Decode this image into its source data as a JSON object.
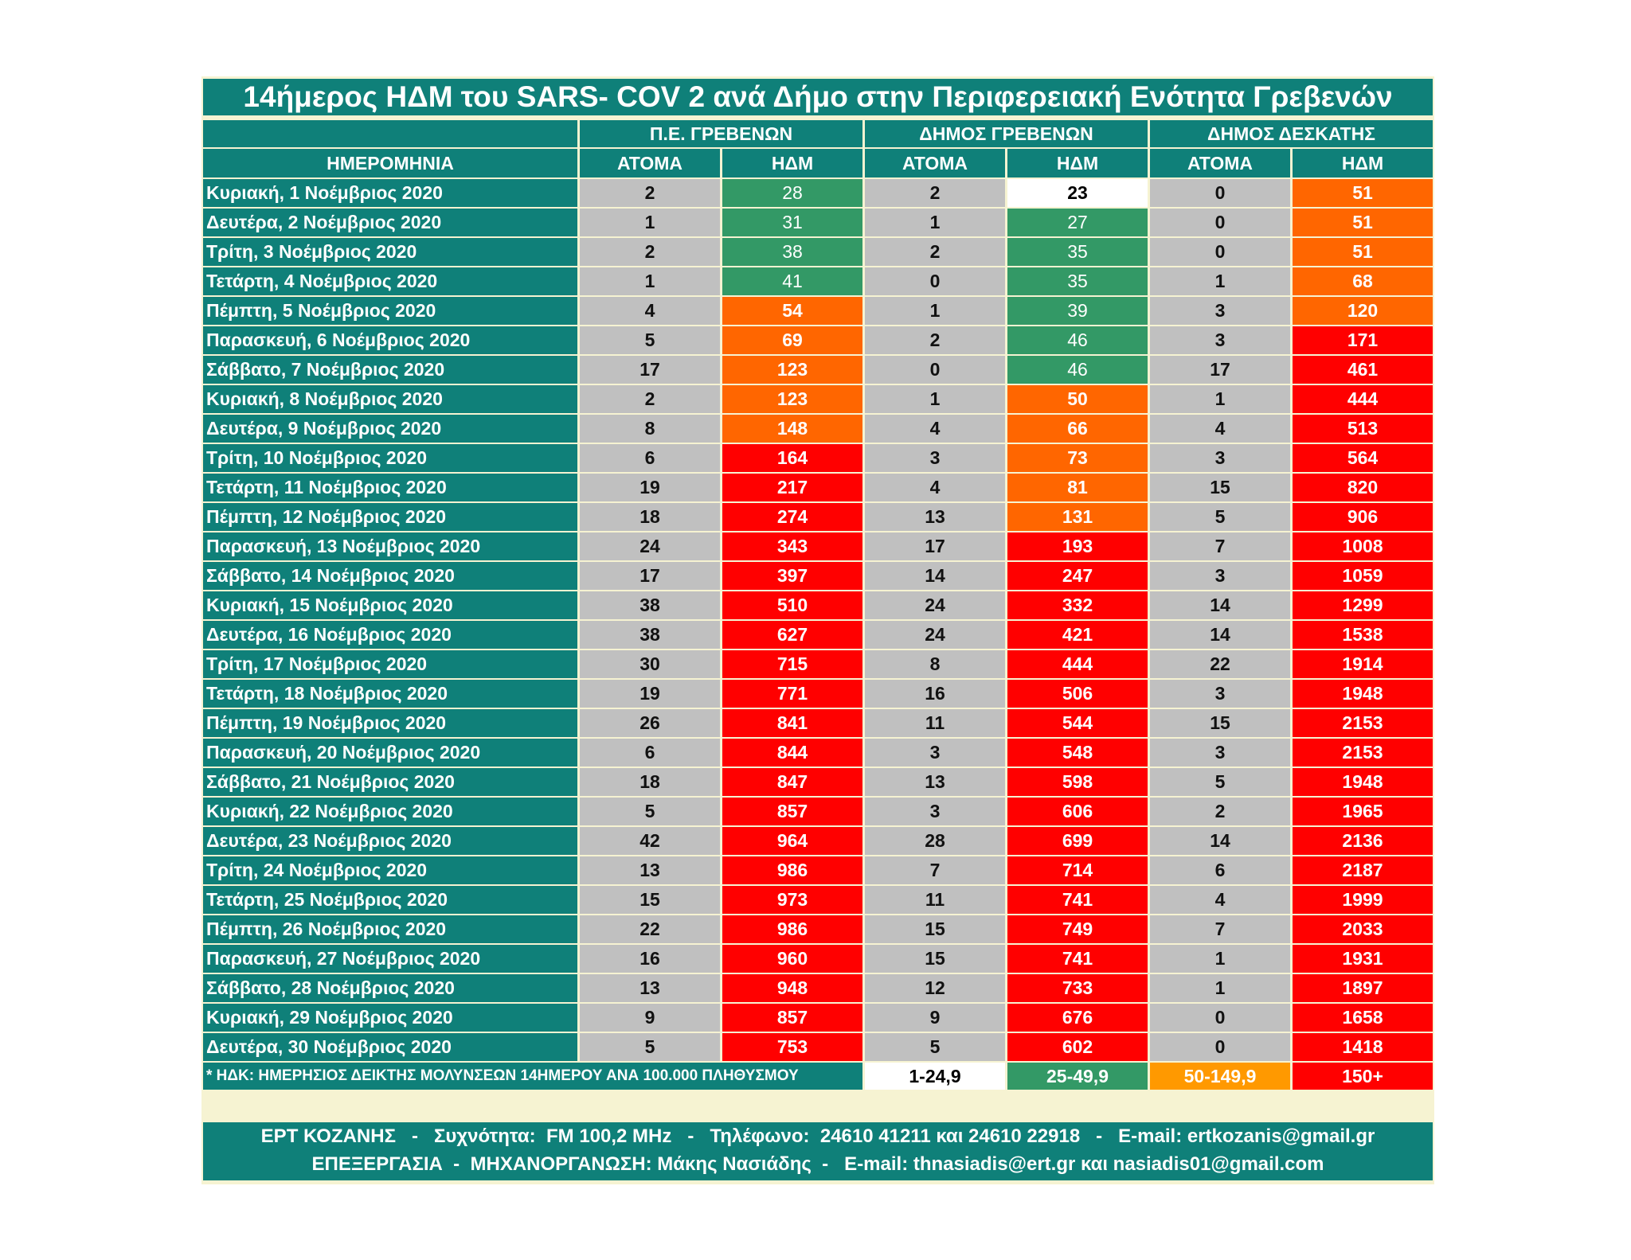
{
  "title": "14ήμερος ΗΔΜ του SARS- COV 2 ανά Δήμο στην Περιφερειακή Ενότητα Γρεβενών",
  "headers": {
    "date": "ΗΜΕΡΟΜΗΝΙΑ",
    "groups": [
      "Π.Ε. ΓΡΕΒΕΝΩΝ",
      "ΔΗΜΟΣ ΓΡΕΒΕΝΩΝ",
      "ΔΗΜΟΣ ΔΕΣΚΑΤΗΣ"
    ],
    "persons": "ΑΤΟΜΑ",
    "index": "ΗΔΜ"
  },
  "rows": [
    {
      "date": "Κυριακή, 1 Νοέμβριος 2020",
      "cells": [
        "2",
        "28",
        "2",
        "23",
        "0",
        "51"
      ]
    },
    {
      "date": "Δευτέρα, 2 Νοέμβριος 2020",
      "cells": [
        "1",
        "31",
        "1",
        "27",
        "0",
        "51"
      ]
    },
    {
      "date": "Τρίτη, 3 Νοέμβριος 2020",
      "cells": [
        "2",
        "38",
        "2",
        "35",
        "0",
        "51"
      ]
    },
    {
      "date": "Τετάρτη, 4 Νοέμβριος 2020",
      "cells": [
        "1",
        "41",
        "0",
        "35",
        "1",
        "68"
      ]
    },
    {
      "date": "Πέμπτη, 5 Νοέμβριος 2020",
      "cells": [
        "4",
        "54",
        "1",
        "39",
        "3",
        "120"
      ]
    },
    {
      "date": "Παρασκευή, 6 Νοέμβριος 2020",
      "cells": [
        "5",
        "69",
        "2",
        "46",
        "3",
        "171"
      ]
    },
    {
      "date": "Σάββατο, 7 Νοέμβριος 2020",
      "cells": [
        "17",
        "123",
        "0",
        "46",
        "17",
        "461"
      ]
    },
    {
      "date": "Κυριακή, 8 Νοέμβριος 2020",
      "cells": [
        "2",
        "123",
        "1",
        "50",
        "1",
        "444"
      ]
    },
    {
      "date": "Δευτέρα, 9 Νοέμβριος 2020",
      "cells": [
        "8",
        "148",
        "4",
        "66",
        "4",
        "513"
      ]
    },
    {
      "date": "Τρίτη, 10 Νοέμβριος 2020",
      "cells": [
        "6",
        "164",
        "3",
        "73",
        "3",
        "564"
      ]
    },
    {
      "date": "Τετάρτη, 11 Νοέμβριος 2020",
      "cells": [
        "19",
        "217",
        "4",
        "81",
        "15",
        "820"
      ]
    },
    {
      "date": "Πέμπτη, 12 Νοέμβριος 2020",
      "cells": [
        "18",
        "274",
        "13",
        "131",
        "5",
        "906"
      ]
    },
    {
      "date": "Παρασκευή, 13 Νοέμβριος 2020",
      "cells": [
        "24",
        "343",
        "17",
        "193",
        "7",
        "1008"
      ]
    },
    {
      "date": "Σάββατο, 14 Νοέμβριος 2020",
      "cells": [
        "17",
        "397",
        "14",
        "247",
        "3",
        "1059"
      ]
    },
    {
      "date": "Κυριακή, 15 Νοέμβριος 2020",
      "cells": [
        "38",
        "510",
        "24",
        "332",
        "14",
        "1299"
      ]
    },
    {
      "date": "Δευτέρα, 16 Νοέμβριος 2020",
      "cells": [
        "38",
        "627",
        "24",
        "421",
        "14",
        "1538"
      ]
    },
    {
      "date": "Τρίτη, 17 Νοέμβριος 2020",
      "cells": [
        "30",
        "715",
        "8",
        "444",
        "22",
        "1914"
      ]
    },
    {
      "date": "Τετάρτη, 18 Νοέμβριος 2020",
      "cells": [
        "19",
        "771",
        "16",
        "506",
        "3",
        "1948"
      ]
    },
    {
      "date": "Πέμπτη, 19 Νοέμβριος 2020",
      "cells": [
        "26",
        "841",
        "11",
        "544",
        "15",
        "2153"
      ]
    },
    {
      "date": "Παρασκευή, 20 Νοέμβριος 2020",
      "cells": [
        "6",
        "844",
        "3",
        "548",
        "3",
        "2153"
      ]
    },
    {
      "date": "Σάββατο, 21 Νοέμβριος 2020",
      "cells": [
        "18",
        "847",
        "13",
        "598",
        "5",
        "1948"
      ]
    },
    {
      "date": "Κυριακή, 22 Νοέμβριος 2020",
      "cells": [
        "5",
        "857",
        "3",
        "606",
        "2",
        "1965"
      ]
    },
    {
      "date": "Δευτέρα, 23 Νοέμβριος 2020",
      "cells": [
        "42",
        "964",
        "28",
        "699",
        "14",
        "2136"
      ]
    },
    {
      "date": "Τρίτη, 24 Νοέμβριος 2020",
      "cells": [
        "13",
        "986",
        "7",
        "714",
        "6",
        "2187"
      ]
    },
    {
      "date": "Τετάρτη, 25 Νοέμβριος 2020",
      "cells": [
        "15",
        "973",
        "11",
        "741",
        "4",
        "1999"
      ]
    },
    {
      "date": "Πέμπτη, 26 Νοέμβριος 2020",
      "cells": [
        "22",
        "986",
        "15",
        "749",
        "7",
        "2033"
      ]
    },
    {
      "date": "Παρασκευή, 27 Νοέμβριος 2020",
      "cells": [
        "16",
        "960",
        "15",
        "741",
        "1",
        "1931"
      ]
    },
    {
      "date": "Σάββατο, 28 Νοέμβριος 2020",
      "cells": [
        "13",
        "948",
        "12",
        "733",
        "1",
        "1897"
      ]
    },
    {
      "date": "Κυριακή, 29 Νοέμβριος 2020",
      "cells": [
        "9",
        "857",
        "9",
        "676",
        "0",
        "1658"
      ]
    },
    {
      "date": "Δευτέρα, 30 Νοέμβριος 2020",
      "cells": [
        "5",
        "753",
        "5",
        "602",
        "0",
        "1418"
      ]
    }
  ],
  "legend": {
    "note": "* ΗΔΚ: ΗΜΕΡΗΣΙΟΣ ΔΕΙΚΤΗΣ ΜΟΛΥΝΣΕΩΝ 14ΗΜΕΡΟΥ ΑΝΑ 100.000 ΠΛΗΘΥΣΜΟΥ",
    "ranges": [
      "1-24,9",
      "25-49,9",
      "50-149,9",
      "150+"
    ]
  },
  "colors": {
    "header_teal": "#0f8079",
    "count_gray": "#c0c0c0",
    "range_white": "#ffffff",
    "range_green": "#339966",
    "range_orange": "#ff6600",
    "range_red": "#ff0000",
    "legend_orange": "#ff9900"
  },
  "footer": {
    "line1": "ΕΡΤ ΚΟΖΑΝΗΣ   -   Συχνότητα:  FM 100,2 MHz   -   Τηλέφωνο:  24610 41211 και 24610 22918   -   E-mail: ertkozanis@gmail.gr",
    "line2": "ΕΠΕΞΕΡΓΑΣΙΑ  -  ΜΗΧΑΝΟΡΓΑΝΩΣΗ: Μάκης Νασιάδης  -   E-mail: thnasiadis@ert.gr και nasiadis01@gmail.com"
  }
}
